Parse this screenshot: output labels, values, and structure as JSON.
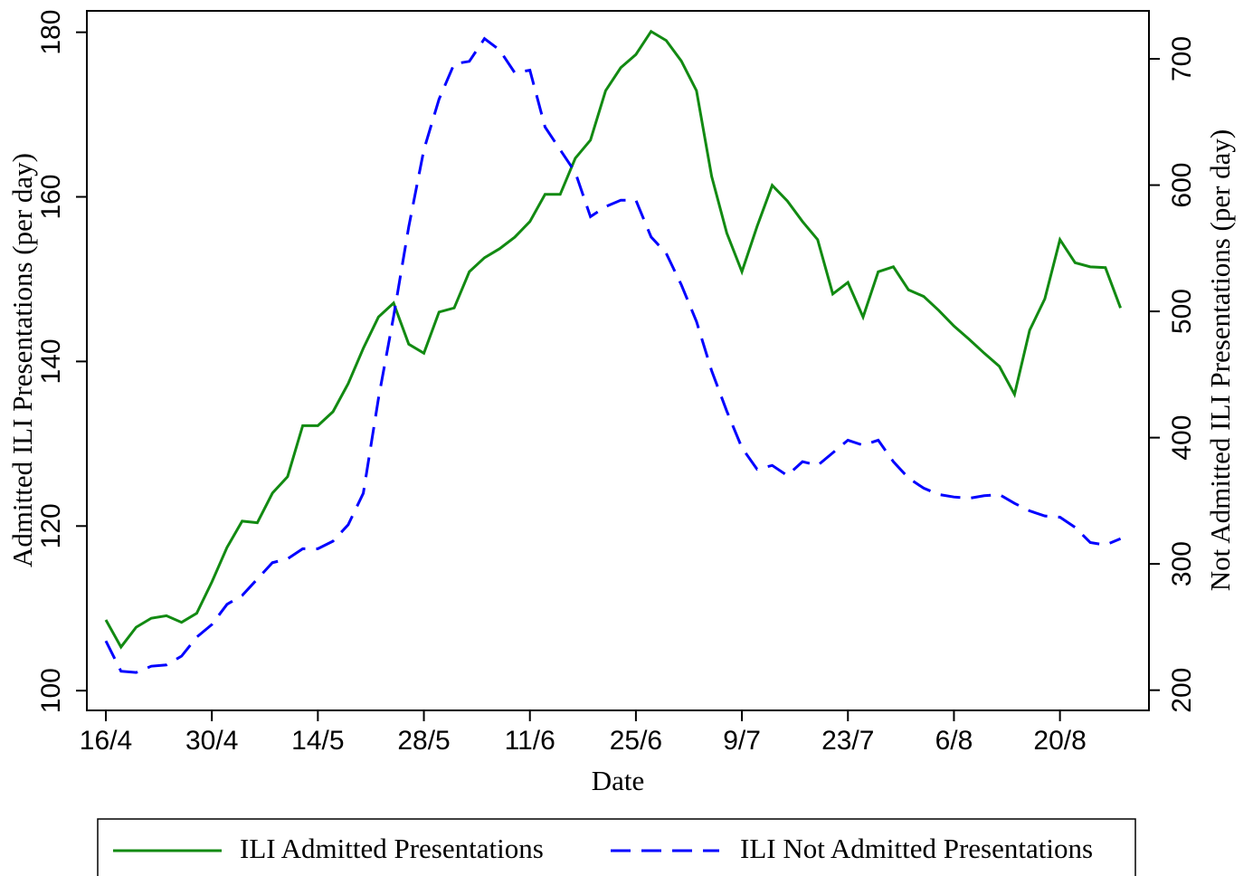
{
  "chart_data": {
    "type": "line",
    "x_label": "Date",
    "y_label": "Admitted ILI Presentations (per day)",
    "y2_label": "Not Admitted ILI Presentations (per day)",
    "categories": [
      "16/4",
      null,
      null,
      null,
      null,
      null,
      null,
      "30/4",
      null,
      null,
      null,
      null,
      null,
      null,
      "14/5",
      null,
      null,
      null,
      null,
      null,
      null,
      "28/5",
      null,
      null,
      null,
      null,
      null,
      null,
      "11/6",
      null,
      null,
      null,
      null,
      null,
      null,
      "25/6",
      null,
      null,
      null,
      null,
      null,
      null,
      "9/7",
      null,
      null,
      null,
      null,
      null,
      null,
      "23/7",
      null,
      null,
      null,
      null,
      null,
      null,
      "6/8",
      null,
      null,
      null,
      null,
      null,
      null,
      "20/8",
      null,
      null,
      null,
      null
    ],
    "series": [
      {
        "name": "ILI Admitted Presentations",
        "color": "#128a12",
        "linestyle": "solid",
        "axis": "y",
        "values": [
          108.6,
          105.3,
          107.7,
          108.8,
          109.1,
          108.3,
          109.4,
          113.2,
          117.4,
          120.6,
          120.4,
          124,
          126,
          132.2,
          132.2,
          133.9,
          137.3,
          141.6,
          145.4,
          147.1,
          142.1,
          141,
          146,
          146.5,
          150.9,
          152.6,
          153.7,
          155.1,
          157,
          160.3,
          160.3,
          164.7,
          166.9,
          172.9,
          175.7,
          177.3,
          180.1,
          179,
          176.5,
          172.9,
          162.5,
          155.6,
          150.9,
          156.4,
          161.4,
          159.5,
          157,
          154.8,
          148.2,
          149.6,
          145.4,
          150.9,
          151.5,
          148.7,
          147.9,
          146.2,
          144.3,
          142.7,
          141,
          139.4,
          136,
          143.8,
          147.6,
          154.8,
          152,
          151.5,
          151.4,
          146.5
        ]
      },
      {
        "name": "ILI Not Admitted Presentations",
        "color": "#0000ff",
        "linestyle": "dashed",
        "axis": "y2",
        "values": [
          239,
          215,
          214,
          219,
          220,
          227,
          242,
          252,
          268,
          275,
          288,
          301,
          304,
          312,
          312,
          318,
          331,
          356,
          431,
          496,
          567,
          628,
          668,
          696,
          698,
          716,
          707,
          689,
          691,
          646,
          628,
          610,
          575,
          583,
          588,
          588,
          559,
          546,
          521,
          492,
          453,
          421,
          392,
          375,
          378,
          370,
          381,
          378,
          388,
          398,
          394,
          398,
          381,
          368,
          360,
          355,
          353,
          352,
          354,
          355,
          348,
          342,
          338,
          337,
          329,
          317,
          315,
          320
        ]
      }
    ],
    "ylim": [
      97.6,
      182.6
    ],
    "yticks": [
      100,
      120,
      140,
      160,
      180
    ],
    "y2lim": [
      184,
      738
    ],
    "y2ticks": [
      200,
      300,
      400,
      500,
      600,
      700
    ],
    "legend": "bottom"
  }
}
